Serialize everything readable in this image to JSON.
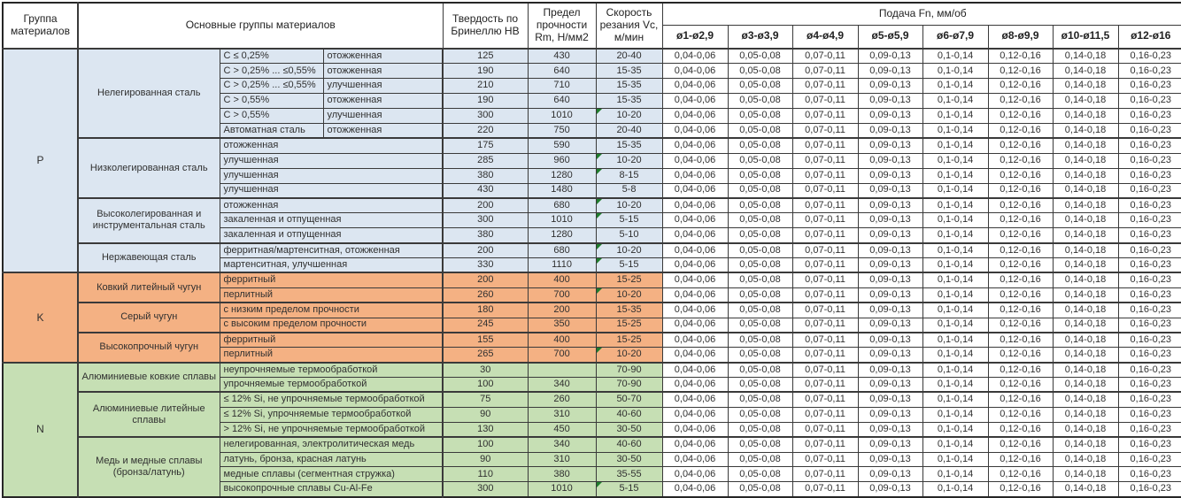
{
  "header": {
    "col_group": "Группа материалов",
    "col_materials": "Основные группы материалов",
    "col_hb": "Твердость по Бринеллю HB",
    "col_rm": "Предел прочности Rm, Н/мм2",
    "col_vc": "Скорость резания Vc, м/мин",
    "col_feed": "Подача Fn, мм/об",
    "feed_cols": [
      "ø1-ø2,9",
      "ø3-ø3,9",
      "ø4-ø4,9",
      "ø5-ø5,9",
      "ø6-ø7,9",
      "ø8-ø9,9",
      "ø10-ø11,5",
      "ø12-ø16"
    ]
  },
  "feed_values": [
    "0,04-0,06",
    "0,05-0,08",
    "0,07-0,11",
    "0,09-0,13",
    "0,1-0,14",
    "0,12-0,16",
    "0,14-0,18",
    "0,16-0,23"
  ],
  "flag_color": "#1f7d2c",
  "groups": [
    {
      "letter": "P",
      "color": "#DCE6F1",
      "families": [
        {
          "name": "Нелегированная сталь",
          "rows": [
            {
              "spec1": "C ≤ 0,25%",
              "spec2": "отожженная",
              "hb": "125",
              "rm": "430",
              "vc": "20-40",
              "flag": false
            },
            {
              "spec1": "C > 0,25% ... ≤0,55%",
              "spec2": "отожженная",
              "hb": "190",
              "rm": "640",
              "vc": "15-35",
              "flag": false
            },
            {
              "spec1": "C > 0,25% ... ≤0,55%",
              "spec2": "улучшенная",
              "hb": "210",
              "rm": "710",
              "vc": "15-35",
              "flag": false
            },
            {
              "spec1": "C > 0,55%",
              "spec2": "отожженная",
              "hb": "190",
              "rm": "640",
              "vc": "15-35",
              "flag": false
            },
            {
              "spec1": "C > 0,55%",
              "spec2": "улучшенная",
              "hb": "300",
              "rm": "1010",
              "vc": "10-20",
              "flag": true
            },
            {
              "spec1": "Автоматная сталь",
              "spec2": "отожженная",
              "hb": "220",
              "rm": "750",
              "vc": "20-40",
              "flag": false
            }
          ]
        },
        {
          "name": "Низколегированная сталь",
          "rows": [
            {
              "spec": "отожженная",
              "hb": "175",
              "rm": "590",
              "vc": "15-35",
              "flag": false
            },
            {
              "spec": "улучшенная",
              "hb": "285",
              "rm": "960",
              "vc": "10-20",
              "flag": true
            },
            {
              "spec": "улучшенная",
              "hb": "380",
              "rm": "1280",
              "vc": "8-15",
              "flag": true
            },
            {
              "spec": "улучшенная",
              "hb": "430",
              "rm": "1480",
              "vc": "5-8",
              "flag": false
            }
          ]
        },
        {
          "name": "Высоколегированная и инструментальная сталь",
          "rows": [
            {
              "spec": "отожженная",
              "hb": "200",
              "rm": "680",
              "vc": "10-20",
              "flag": true
            },
            {
              "spec": "закаленная и отпущенная",
              "hb": "300",
              "rm": "1010",
              "vc": "5-15",
              "flag": true
            },
            {
              "spec": "закаленная и отпущенная",
              "hb": "380",
              "rm": "1280",
              "vc": "5-10",
              "flag": false
            }
          ]
        },
        {
          "name": "Нержавеющая сталь",
          "rows": [
            {
              "spec": "ферритная/мартенситная, отожженная",
              "hb": "200",
              "rm": "680",
              "vc": "10-20",
              "flag": true
            },
            {
              "spec": "мартенситная, улучшенная",
              "hb": "330",
              "rm": "1110",
              "vc": "5-15",
              "flag": true
            }
          ]
        }
      ]
    },
    {
      "letter": "K",
      "color": "#F4B183",
      "families": [
        {
          "name": "Ковкий литейный чугун",
          "rows": [
            {
              "spec": "ферритный",
              "hb": "200",
              "rm": "400",
              "vc": "15-25",
              "flag": false
            },
            {
              "spec": "перлитный",
              "hb": "260",
              "rm": "700",
              "vc": "10-20",
              "flag": true
            }
          ]
        },
        {
          "name": "Серый чугун",
          "rows": [
            {
              "spec": "с низким пределом прочности",
              "hb": "180",
              "rm": "200",
              "vc": "15-35",
              "flag": false
            },
            {
              "spec": "с высоким пределом прочности",
              "hb": "245",
              "rm": "350",
              "vc": "15-25",
              "flag": false
            }
          ]
        },
        {
          "name": "Высокопрочный чугун",
          "rows": [
            {
              "spec": "ферритный",
              "hb": "155",
              "rm": "400",
              "vc": "15-25",
              "flag": false
            },
            {
              "spec": "перлитный",
              "hb": "265",
              "rm": "700",
              "vc": "10-20",
              "flag": true
            }
          ]
        }
      ]
    },
    {
      "letter": "N",
      "color": "#C6DFB4",
      "families": [
        {
          "name": "Алюминиевые ковкие сплавы",
          "rows": [
            {
              "spec": "неупрочняемые термообработкой",
              "hb": "30",
              "rm": "",
              "vc": "70-90",
              "flag": false
            },
            {
              "spec": "упрочняемые термообработкой",
              "hb": "100",
              "rm": "340",
              "vc": "70-90",
              "flag": false
            }
          ]
        },
        {
          "name": "Алюминиевые литейные сплавы",
          "rows": [
            {
              "spec": "≤ 12% Si, не упрочняемые термообработкой",
              "hb": "75",
              "rm": "260",
              "vc": "50-70",
              "flag": false
            },
            {
              "spec": "≤ 12% Si, упрочняемые термообработкой",
              "hb": "90",
              "rm": "310",
              "vc": "40-60",
              "flag": false
            },
            {
              "spec": "> 12% Si, не упрочняемые термообработкой",
              "hb": "130",
              "rm": "450",
              "vc": "30-50",
              "flag": false
            }
          ]
        },
        {
          "name": "Медь и медные сплавы (бронза/латунь)",
          "rows": [
            {
              "spec": "нелегированная, электролитическая медь",
              "hb": "100",
              "rm": "340",
              "vc": "40-60",
              "flag": false
            },
            {
              "spec": "латунь, бронза, красная латунь",
              "hb": "90",
              "rm": "310",
              "vc": "30-50",
              "flag": false
            },
            {
              "spec": "медные сплавы (сегментная стружка)",
              "hb": "110",
              "rm": "380",
              "vc": "35-55",
              "flag": false
            },
            {
              "spec": "высокопрочные сплавы Cu-Al-Fe",
              "hb": "300",
              "rm": "1010",
              "vc": "5-15",
              "flag": true
            }
          ]
        }
      ]
    }
  ]
}
